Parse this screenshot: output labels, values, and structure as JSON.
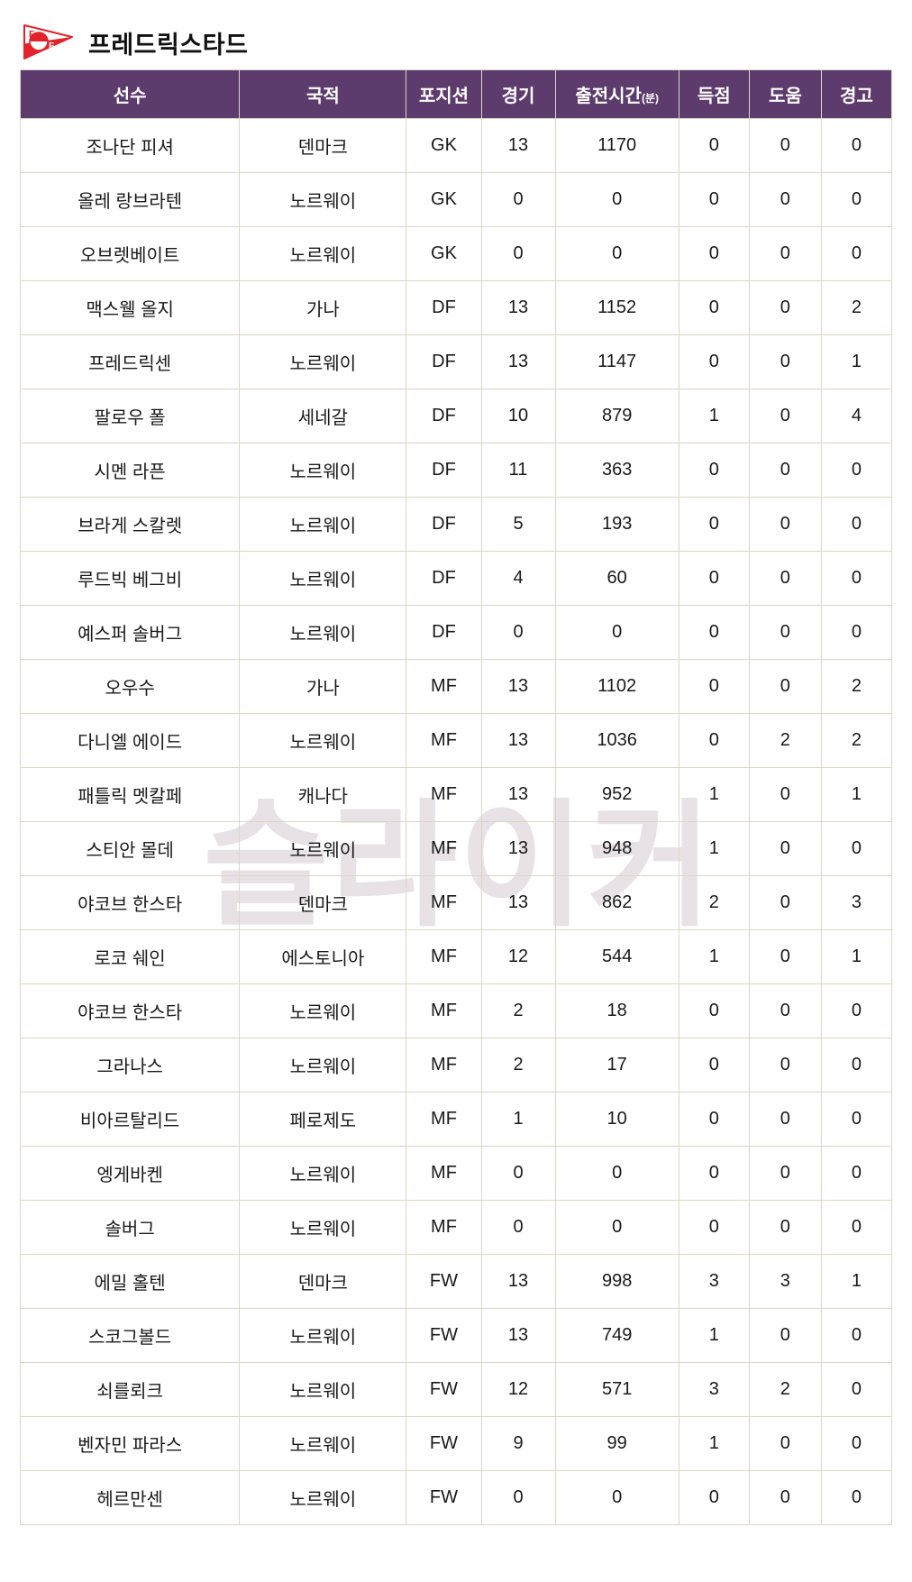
{
  "team": {
    "name": "프레드릭스타드"
  },
  "watermark": {
    "text": "슬라이커",
    "color": "#e8e1e6"
  },
  "table": {
    "headers": [
      "선수",
      "국적",
      "포지션",
      "경기",
      "출전시간",
      "득점",
      "도움",
      "경고"
    ],
    "playtime_unit": "(분)",
    "column_keys": [
      "player",
      "nationality",
      "position",
      "games",
      "minutes",
      "goals",
      "assists",
      "cautions"
    ],
    "rows": [
      [
        "조나단 피셔",
        "덴마크",
        "GK",
        "13",
        "1170",
        "0",
        "0",
        "0"
      ],
      [
        "올레 랑브라텐",
        "노르웨이",
        "GK",
        "0",
        "0",
        "0",
        "0",
        "0"
      ],
      [
        "오브렛베이트",
        "노르웨이",
        "GK",
        "0",
        "0",
        "0",
        "0",
        "0"
      ],
      [
        "맥스웰 올지",
        "가나",
        "DF",
        "13",
        "1152",
        "0",
        "0",
        "2"
      ],
      [
        "프레드릭센",
        "노르웨이",
        "DF",
        "13",
        "1147",
        "0",
        "0",
        "1"
      ],
      [
        "팔로우 폴",
        "세네갈",
        "DF",
        "10",
        "879",
        "1",
        "0",
        "4"
      ],
      [
        "시멘 라픈",
        "노르웨이",
        "DF",
        "11",
        "363",
        "0",
        "0",
        "0"
      ],
      [
        "브라게 스칼렛",
        "노르웨이",
        "DF",
        "5",
        "193",
        "0",
        "0",
        "0"
      ],
      [
        "루드빅 베그비",
        "노르웨이",
        "DF",
        "4",
        "60",
        "0",
        "0",
        "0"
      ],
      [
        "예스퍼 솔버그",
        "노르웨이",
        "DF",
        "0",
        "0",
        "0",
        "0",
        "0"
      ],
      [
        "오우수",
        "가나",
        "MF",
        "13",
        "1102",
        "0",
        "0",
        "2"
      ],
      [
        "다니엘 에이드",
        "노르웨이",
        "MF",
        "13",
        "1036",
        "0",
        "2",
        "2"
      ],
      [
        "패틀릭 멧칼페",
        "캐나다",
        "MF",
        "13",
        "952",
        "1",
        "0",
        "1"
      ],
      [
        "스티안 몰데",
        "노르웨이",
        "MF",
        "13",
        "948",
        "1",
        "0",
        "0"
      ],
      [
        "야코브 한스타",
        "덴마크",
        "MF",
        "13",
        "862",
        "2",
        "0",
        "3"
      ],
      [
        "로코 쉐인",
        "에스토니아",
        "MF",
        "12",
        "544",
        "1",
        "0",
        "1"
      ],
      [
        "야코브 한스타",
        "노르웨이",
        "MF",
        "2",
        "18",
        "0",
        "0",
        "0"
      ],
      [
        "그라나스",
        "노르웨이",
        "MF",
        "2",
        "17",
        "0",
        "0",
        "0"
      ],
      [
        "비아르탈리드",
        "페로제도",
        "MF",
        "1",
        "10",
        "0",
        "0",
        "0"
      ],
      [
        "엥게바켄",
        "노르웨이",
        "MF",
        "0",
        "0",
        "0",
        "0",
        "0"
      ],
      [
        "솔버그",
        "노르웨이",
        "MF",
        "0",
        "0",
        "0",
        "0",
        "0"
      ],
      [
        "에밀 홀텐",
        "덴마크",
        "FW",
        "13",
        "998",
        "3",
        "3",
        "1"
      ],
      [
        "스코그볼드",
        "노르웨이",
        "FW",
        "13",
        "749",
        "1",
        "0",
        "0"
      ],
      [
        "쇠를뢰크",
        "노르웨이",
        "FW",
        "12",
        "571",
        "3",
        "2",
        "0"
      ],
      [
        "벤자민 파라스",
        "노르웨이",
        "FW",
        "9",
        "99",
        "1",
        "0",
        "0"
      ],
      [
        "헤르만센",
        "노르웨이",
        "FW",
        "0",
        "0",
        "0",
        "0",
        "0"
      ]
    ]
  },
  "colors": {
    "header_bg": "#5d3b6d",
    "header_text": "#ffffff",
    "cell_border": "#ddd6c3",
    "body_text": "#191919",
    "logo_red": "#e2232b",
    "watermark": "#e8e1e6"
  }
}
